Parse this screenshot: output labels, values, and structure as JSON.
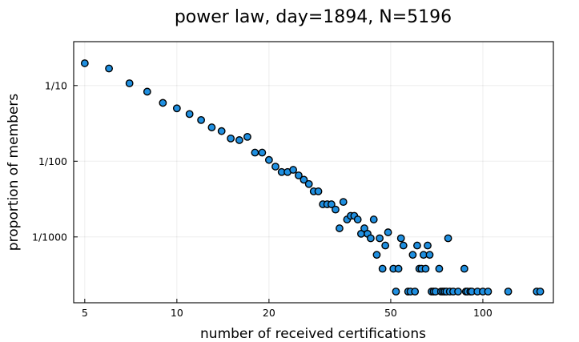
{
  "chart_data": {
    "type": "scatter",
    "title": "power law, day=1894, N=5196",
    "xlabel": "number of received certifications",
    "ylabel": "proportion of members",
    "xscale": "log",
    "yscale": "log",
    "xlim": [
      4.6,
      170
    ],
    "ylim": [
      0.000135,
      0.38
    ],
    "grid": true,
    "legend": "none",
    "x_ticks": [
      {
        "value": 5,
        "label": "5"
      },
      {
        "value": 10,
        "label": "10"
      },
      {
        "value": 20,
        "label": "20"
      },
      {
        "value": 50,
        "label": "50"
      },
      {
        "value": 100,
        "label": "100"
      }
    ],
    "y_ticks": [
      {
        "value": 0.1,
        "label": "1/10"
      },
      {
        "value": 0.01,
        "label": "1/100"
      },
      {
        "value": 0.001,
        "label": "1/1000"
      }
    ],
    "marker_color": "#1f8fe0",
    "points": [
      [
        5,
        0.197
      ],
      [
        6,
        0.168
      ],
      [
        7,
        0.107
      ],
      [
        8,
        0.083
      ],
      [
        9,
        0.059
      ],
      [
        10,
        0.05
      ],
      [
        11,
        0.042
      ],
      [
        12,
        0.035
      ],
      [
        13,
        0.028
      ],
      [
        14,
        0.025
      ],
      [
        15,
        0.02
      ],
      [
        16,
        0.019
      ],
      [
        17,
        0.021
      ],
      [
        18,
        0.013
      ],
      [
        19,
        0.013
      ],
      [
        20,
        0.0104
      ],
      [
        21,
        0.0085
      ],
      [
        22,
        0.0072
      ],
      [
        23,
        0.0072
      ],
      [
        24,
        0.0077
      ],
      [
        25,
        0.0065
      ],
      [
        26,
        0.0057
      ],
      [
        27,
        0.005
      ],
      [
        28,
        0.004
      ],
      [
        29,
        0.004
      ],
      [
        30,
        0.0027
      ],
      [
        31,
        0.0027
      ],
      [
        32,
        0.0027
      ],
      [
        33,
        0.0023
      ],
      [
        34,
        0.0013
      ],
      [
        35,
        0.0029
      ],
      [
        36,
        0.0017
      ],
      [
        37,
        0.0019
      ],
      [
        38,
        0.0019
      ],
      [
        39,
        0.0017
      ],
      [
        40,
        0.0011
      ],
      [
        41,
        0.0013
      ],
      [
        42,
        0.0011
      ],
      [
        43,
        0.00096
      ],
      [
        44,
        0.0017
      ],
      [
        45,
        0.00058
      ],
      [
        46,
        0.00096
      ],
      [
        47,
        0.00038
      ],
      [
        48,
        0.00077
      ],
      [
        49,
        0.00115
      ],
      [
        51,
        0.00038
      ],
      [
        52,
        0.00019
      ],
      [
        53,
        0.00038
      ],
      [
        54,
        0.00096
      ],
      [
        55,
        0.00077
      ],
      [
        57,
        0.00019
      ],
      [
        58,
        0.00019
      ],
      [
        59,
        0.00058
      ],
      [
        60,
        0.00019
      ],
      [
        61,
        0.00077
      ],
      [
        62,
        0.00038
      ],
      [
        63,
        0.00038
      ],
      [
        64,
        0.00058
      ],
      [
        65,
        0.00038
      ],
      [
        66,
        0.00077
      ],
      [
        67,
        0.00058
      ],
      [
        68,
        0.00019
      ],
      [
        69,
        0.00019
      ],
      [
        70,
        0.00019
      ],
      [
        72,
        0.00038
      ],
      [
        73,
        0.00019
      ],
      [
        74,
        0.00019
      ],
      [
        75,
        0.00019
      ],
      [
        76,
        0.00019
      ],
      [
        77,
        0.00096
      ],
      [
        78,
        0.00019
      ],
      [
        80,
        0.00019
      ],
      [
        83,
        0.00019
      ],
      [
        87,
        0.00038
      ],
      [
        88,
        0.00019
      ],
      [
        89,
        0.00019
      ],
      [
        91,
        0.00019
      ],
      [
        92,
        0.00019
      ],
      [
        96,
        0.00019
      ],
      [
        100,
        0.00019
      ],
      [
        104,
        0.00019
      ],
      [
        121,
        0.00019
      ],
      [
        150,
        0.00019
      ],
      [
        154,
        0.00019
      ]
    ]
  }
}
